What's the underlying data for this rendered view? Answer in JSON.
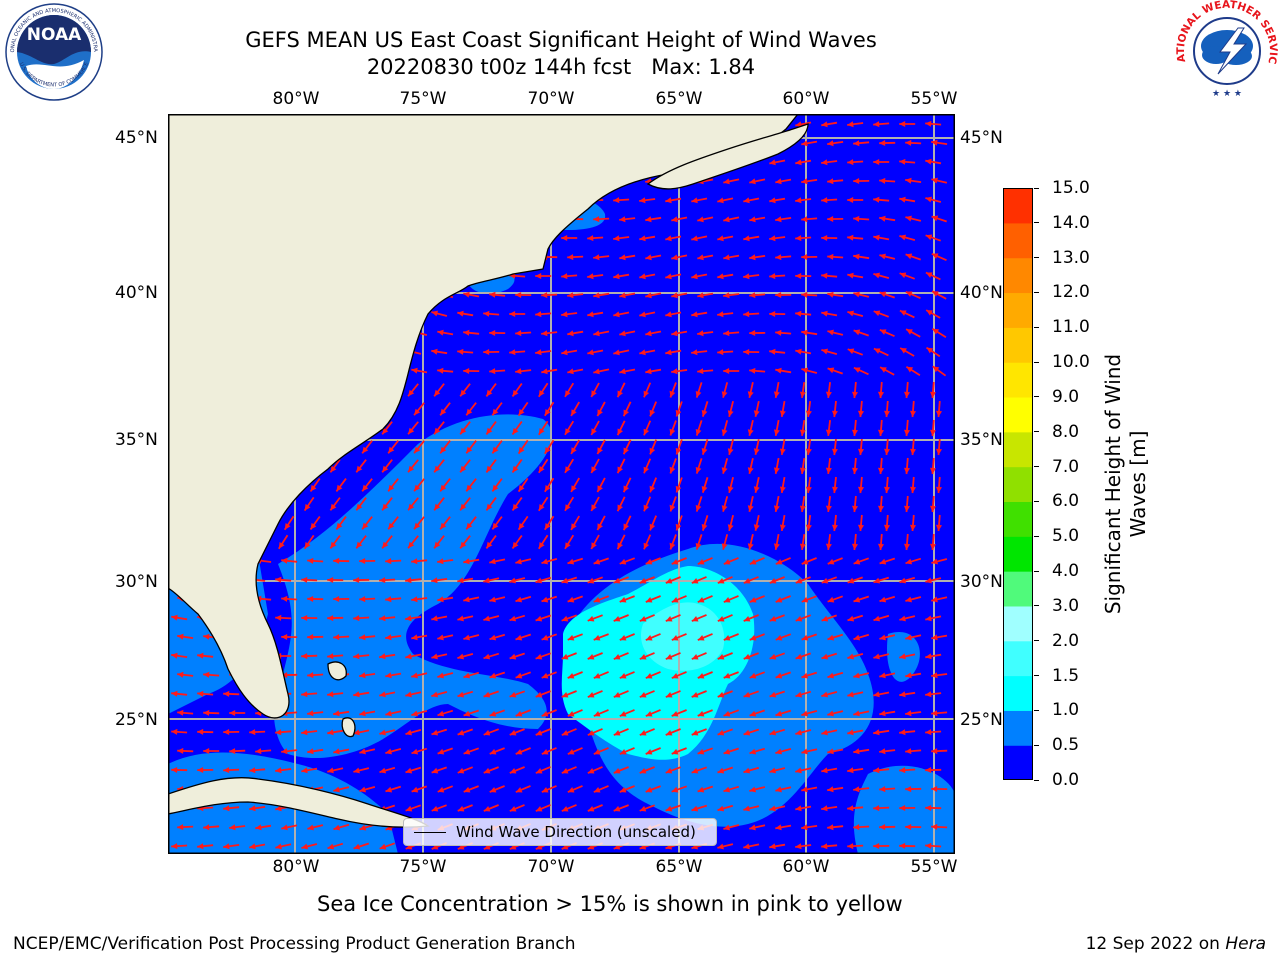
{
  "title": {
    "line1": "GEFS MEAN US East Coast Significant Height of Wind Waves",
    "line2": "20220830 t00z 144h fcst   Max: 1.84"
  },
  "logos": {
    "noaa": "NOAA",
    "noaa_ring": "NATIONAL OCEANIC AND ATMOSPHERIC ADMINISTRATION",
    "noaa_ring_bottom": "U.S. DEPARTMENT OF COMMERCE",
    "nws_ring": "NATIONAL WEATHER SERVICE"
  },
  "axes": {
    "lon_labels": [
      "80°W",
      "75°W",
      "70°W",
      "65°W",
      "60°W",
      "55°W"
    ],
    "lat_labels": [
      "45°N",
      "40°N",
      "35°N",
      "30°N",
      "25°N"
    ]
  },
  "colorbar": {
    "label_line1": "Significant Height of Wind",
    "label_line2": "Waves [m]",
    "ticks": [
      "15.0",
      "14.0",
      "13.0",
      "12.0",
      "11.0",
      "10.0",
      "9.0",
      "8.0",
      "7.0",
      "6.0",
      "5.0",
      "4.0",
      "3.0",
      "2.0",
      "1.5",
      "1.0",
      "0.5",
      "0.0"
    ],
    "colors": [
      "#0000ff",
      "#0080ff",
      "#00ffff",
      "#40ffff",
      "#a0ffff",
      "#50fa7b",
      "#00e600",
      "#40e000",
      "#90e000",
      "#c8e600",
      "#ffff00",
      "#ffe600",
      "#ffc800",
      "#ffaa00",
      "#ff8800",
      "#ff6000",
      "#ff3000",
      "#ff0000"
    ],
    "bounds": [
      0,
      0.5,
      1.0,
      1.5,
      2.0,
      3.0,
      4.0,
      5.0,
      6.0,
      7.0,
      8.0,
      9.0,
      10.0,
      11.0,
      12.0,
      13.0,
      14.0,
      15.0
    ]
  },
  "legend": {
    "label": "Wind Wave Direction (unscaled)"
  },
  "subtitle": "Sea Ice Concentration > 15% is shown in pink to yellow",
  "footer": {
    "left": "NCEP/EMC/Verification Post Processing Product Generation Branch",
    "right_date": "12 Sep 2022 on ",
    "right_machine": "Hera"
  },
  "map": {
    "land_color": "#efeedb",
    "grid_color": "#b0b0b0",
    "arrow_color": "#ff1a1a",
    "max_wave_height_m": 1.84
  }
}
